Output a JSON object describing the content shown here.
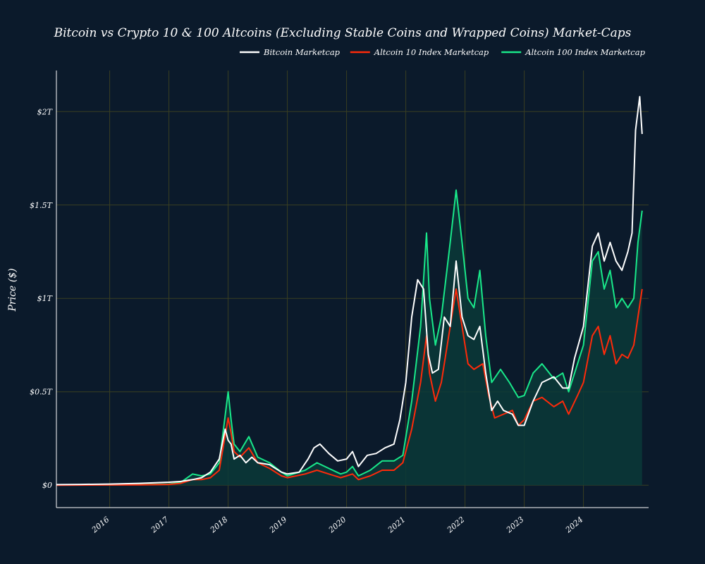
{
  "chart_data": {
    "type": "line",
    "title": "Bitcoin vs Crypto 10 & 100 Altcoins (Excluding Stable Coins and Wrapped Coins) Market-Caps",
    "xlabel": "",
    "ylabel": "Price ($)",
    "x_ticks": [
      "2016",
      "2017",
      "2018",
      "2019",
      "2020",
      "2021",
      "2022",
      "2023",
      "2024"
    ],
    "y_ticks": [
      "$0",
      "$0.5T",
      "$1T",
      "$1.5T",
      "$2T"
    ],
    "y_tick_values": [
      0,
      0.5,
      1,
      1.5,
      2
    ],
    "x_range": [
      2015.1,
      2025.1
    ],
    "y_range": [
      -0.12,
      2.22
    ],
    "y_unit": "trillion USD",
    "grid": true,
    "legend_position": "top-right",
    "series": [
      {
        "name": "Bitcoin Marketcap",
        "color": "#ffffff",
        "points": [
          [
            2015.1,
            0.003
          ],
          [
            2015.5,
            0.004
          ],
          [
            2016.0,
            0.006
          ],
          [
            2016.5,
            0.01
          ],
          [
            2017.0,
            0.016
          ],
          [
            2017.2,
            0.02
          ],
          [
            2017.4,
            0.03
          ],
          [
            2017.55,
            0.04
          ],
          [
            2017.7,
            0.07
          ],
          [
            2017.85,
            0.14
          ],
          [
            2017.95,
            0.3
          ],
          [
            2018.0,
            0.24
          ],
          [
            2018.05,
            0.22
          ],
          [
            2018.1,
            0.14
          ],
          [
            2018.2,
            0.16
          ],
          [
            2018.3,
            0.12
          ],
          [
            2018.4,
            0.15
          ],
          [
            2018.5,
            0.12
          ],
          [
            2018.7,
            0.11
          ],
          [
            2018.9,
            0.07
          ],
          [
            2019.0,
            0.06
          ],
          [
            2019.2,
            0.07
          ],
          [
            2019.35,
            0.14
          ],
          [
            2019.45,
            0.2
          ],
          [
            2019.55,
            0.22
          ],
          [
            2019.7,
            0.17
          ],
          [
            2019.85,
            0.13
          ],
          [
            2020.0,
            0.14
          ],
          [
            2020.1,
            0.18
          ],
          [
            2020.2,
            0.1
          ],
          [
            2020.35,
            0.16
          ],
          [
            2020.5,
            0.17
          ],
          [
            2020.65,
            0.2
          ],
          [
            2020.8,
            0.22
          ],
          [
            2020.9,
            0.35
          ],
          [
            2021.0,
            0.55
          ],
          [
            2021.1,
            0.9
          ],
          [
            2021.2,
            1.1
          ],
          [
            2021.3,
            1.05
          ],
          [
            2021.38,
            0.7
          ],
          [
            2021.45,
            0.6
          ],
          [
            2021.55,
            0.62
          ],
          [
            2021.65,
            0.9
          ],
          [
            2021.75,
            0.85
          ],
          [
            2021.85,
            1.2
          ],
          [
            2021.95,
            0.9
          ],
          [
            2022.05,
            0.8
          ],
          [
            2022.15,
            0.78
          ],
          [
            2022.25,
            0.85
          ],
          [
            2022.35,
            0.6
          ],
          [
            2022.45,
            0.4
          ],
          [
            2022.55,
            0.45
          ],
          [
            2022.65,
            0.4
          ],
          [
            2022.8,
            0.38
          ],
          [
            2022.9,
            0.32
          ],
          [
            2023.0,
            0.32
          ],
          [
            2023.15,
            0.45
          ],
          [
            2023.3,
            0.55
          ],
          [
            2023.5,
            0.58
          ],
          [
            2023.65,
            0.52
          ],
          [
            2023.75,
            0.52
          ],
          [
            2023.85,
            0.68
          ],
          [
            2024.0,
            0.85
          ],
          [
            2024.15,
            1.28
          ],
          [
            2024.25,
            1.35
          ],
          [
            2024.35,
            1.2
          ],
          [
            2024.45,
            1.3
          ],
          [
            2024.55,
            1.2
          ],
          [
            2024.65,
            1.15
          ],
          [
            2024.75,
            1.25
          ],
          [
            2024.82,
            1.35
          ],
          [
            2024.88,
            1.9
          ],
          [
            2024.95,
            2.08
          ],
          [
            2024.99,
            1.88
          ]
        ]
      },
      {
        "name": "Altcoin 10 Index Marketcap",
        "color": "#ff2a0a",
        "points": [
          [
            2015.1,
            0.0
          ],
          [
            2016.0,
            0.001
          ],
          [
            2016.5,
            0.002
          ],
          [
            2017.0,
            0.004
          ],
          [
            2017.2,
            0.01
          ],
          [
            2017.4,
            0.03
          ],
          [
            2017.55,
            0.03
          ],
          [
            2017.7,
            0.04
          ],
          [
            2017.85,
            0.08
          ],
          [
            2018.0,
            0.36
          ],
          [
            2018.05,
            0.28
          ],
          [
            2018.1,
            0.18
          ],
          [
            2018.2,
            0.15
          ],
          [
            2018.35,
            0.2
          ],
          [
            2018.5,
            0.12
          ],
          [
            2018.7,
            0.09
          ],
          [
            2018.9,
            0.05
          ],
          [
            2019.0,
            0.04
          ],
          [
            2019.3,
            0.06
          ],
          [
            2019.5,
            0.08
          ],
          [
            2019.7,
            0.06
          ],
          [
            2019.9,
            0.04
          ],
          [
            2020.0,
            0.05
          ],
          [
            2020.1,
            0.06
          ],
          [
            2020.2,
            0.03
          ],
          [
            2020.4,
            0.05
          ],
          [
            2020.6,
            0.08
          ],
          [
            2020.8,
            0.08
          ],
          [
            2020.95,
            0.12
          ],
          [
            2021.1,
            0.3
          ],
          [
            2021.25,
            0.55
          ],
          [
            2021.35,
            0.8
          ],
          [
            2021.4,
            0.6
          ],
          [
            2021.5,
            0.45
          ],
          [
            2021.6,
            0.55
          ],
          [
            2021.75,
            0.85
          ],
          [
            2021.85,
            1.05
          ],
          [
            2021.95,
            0.85
          ],
          [
            2022.05,
            0.65
          ],
          [
            2022.15,
            0.62
          ],
          [
            2022.3,
            0.65
          ],
          [
            2022.4,
            0.48
          ],
          [
            2022.5,
            0.36
          ],
          [
            2022.65,
            0.38
          ],
          [
            2022.8,
            0.4
          ],
          [
            2022.9,
            0.32
          ],
          [
            2023.0,
            0.35
          ],
          [
            2023.15,
            0.45
          ],
          [
            2023.3,
            0.47
          ],
          [
            2023.5,
            0.42
          ],
          [
            2023.65,
            0.45
          ],
          [
            2023.75,
            0.38
          ],
          [
            2023.9,
            0.48
          ],
          [
            2024.0,
            0.55
          ],
          [
            2024.15,
            0.8
          ],
          [
            2024.25,
            0.85
          ],
          [
            2024.35,
            0.7
          ],
          [
            2024.45,
            0.8
          ],
          [
            2024.55,
            0.65
          ],
          [
            2024.65,
            0.7
          ],
          [
            2024.75,
            0.68
          ],
          [
            2024.85,
            0.75
          ],
          [
            2024.92,
            0.9
          ],
          [
            2024.99,
            1.05
          ]
        ]
      },
      {
        "name": "Altcoin 100 Index Marketcap",
        "color": "#19e88a",
        "points": [
          [
            2015.1,
            0.001
          ],
          [
            2016.0,
            0.002
          ],
          [
            2016.5,
            0.003
          ],
          [
            2017.0,
            0.006
          ],
          [
            2017.2,
            0.015
          ],
          [
            2017.4,
            0.06
          ],
          [
            2017.55,
            0.05
          ],
          [
            2017.7,
            0.06
          ],
          [
            2017.85,
            0.12
          ],
          [
            2018.0,
            0.5
          ],
          [
            2018.05,
            0.35
          ],
          [
            2018.1,
            0.22
          ],
          [
            2018.2,
            0.18
          ],
          [
            2018.35,
            0.26
          ],
          [
            2018.5,
            0.15
          ],
          [
            2018.7,
            0.12
          ],
          [
            2018.9,
            0.07
          ],
          [
            2019.0,
            0.05
          ],
          [
            2019.3,
            0.08
          ],
          [
            2019.5,
            0.12
          ],
          [
            2019.7,
            0.09
          ],
          [
            2019.9,
            0.06
          ],
          [
            2020.0,
            0.07
          ],
          [
            2020.1,
            0.1
          ],
          [
            2020.2,
            0.05
          ],
          [
            2020.4,
            0.08
          ],
          [
            2020.6,
            0.13
          ],
          [
            2020.8,
            0.13
          ],
          [
            2020.95,
            0.16
          ],
          [
            2021.1,
            0.45
          ],
          [
            2021.25,
            0.85
          ],
          [
            2021.35,
            1.35
          ],
          [
            2021.4,
            1.0
          ],
          [
            2021.5,
            0.75
          ],
          [
            2021.6,
            0.9
          ],
          [
            2021.75,
            1.3
          ],
          [
            2021.85,
            1.58
          ],
          [
            2021.95,
            1.3
          ],
          [
            2022.05,
            1.0
          ],
          [
            2022.15,
            0.95
          ],
          [
            2022.25,
            1.15
          ],
          [
            2022.35,
            0.8
          ],
          [
            2022.45,
            0.55
          ],
          [
            2022.6,
            0.62
          ],
          [
            2022.75,
            0.55
          ],
          [
            2022.9,
            0.47
          ],
          [
            2023.0,
            0.48
          ],
          [
            2023.15,
            0.6
          ],
          [
            2023.3,
            0.65
          ],
          [
            2023.5,
            0.57
          ],
          [
            2023.65,
            0.6
          ],
          [
            2023.75,
            0.5
          ],
          [
            2023.9,
            0.65
          ],
          [
            2024.0,
            0.75
          ],
          [
            2024.15,
            1.2
          ],
          [
            2024.25,
            1.25
          ],
          [
            2024.35,
            1.05
          ],
          [
            2024.45,
            1.15
          ],
          [
            2024.55,
            0.95
          ],
          [
            2024.65,
            1.0
          ],
          [
            2024.75,
            0.95
          ],
          [
            2024.85,
            1.0
          ],
          [
            2024.92,
            1.3
          ],
          [
            2024.99,
            1.47
          ]
        ]
      }
    ]
  }
}
